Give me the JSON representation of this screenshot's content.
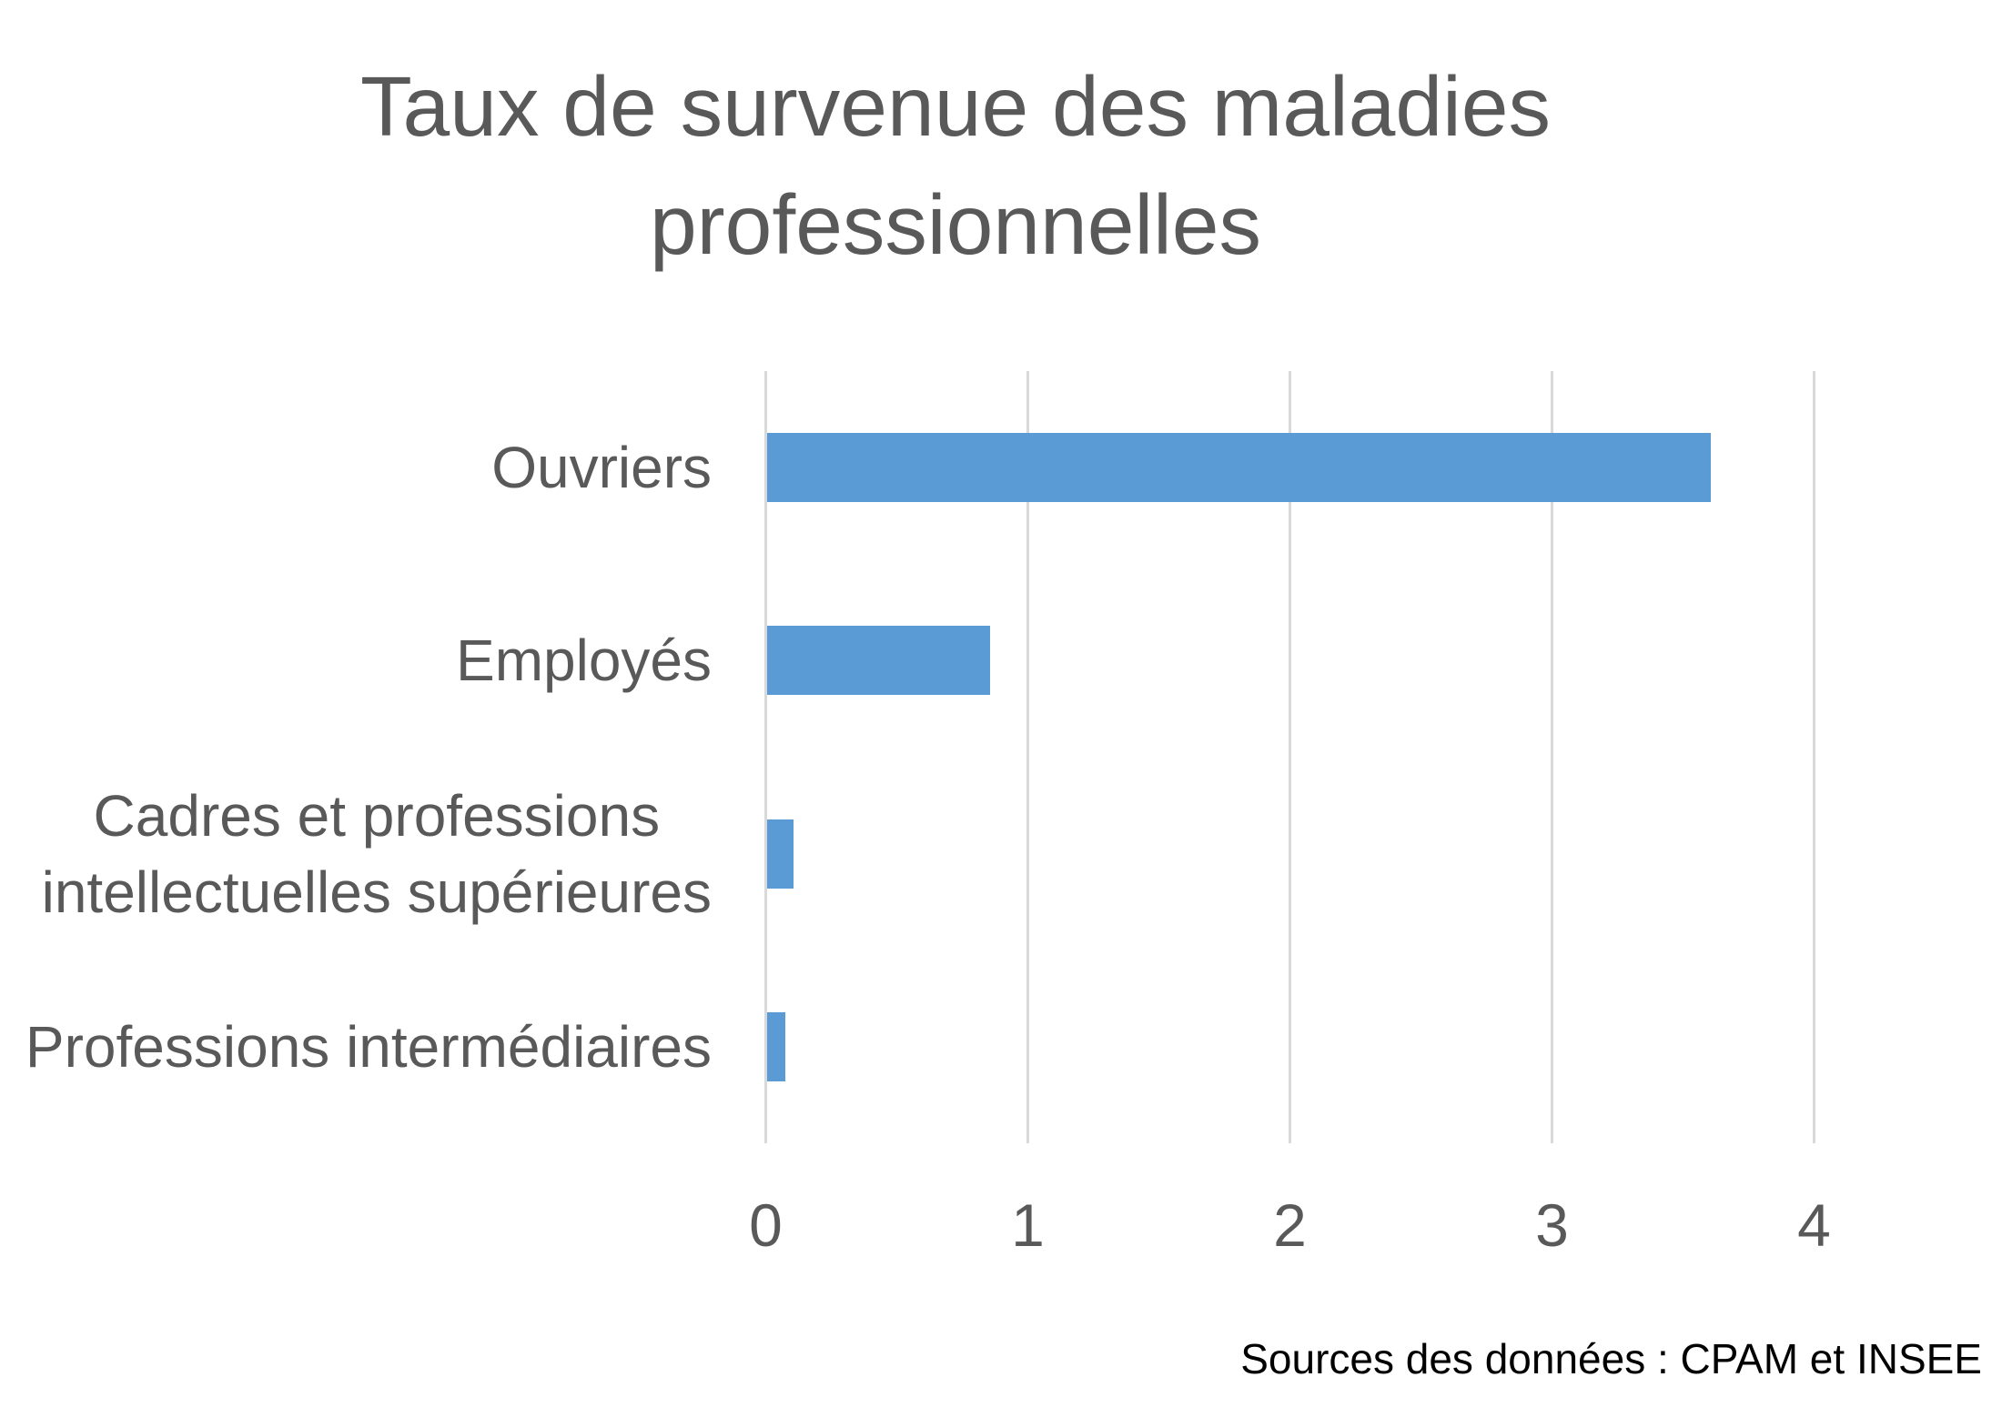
{
  "title": {
    "lines": [
      "Taux de survenue des maladies",
      "professionnelles"
    ]
  },
  "chart_data": {
    "type": "bar",
    "orientation": "horizontal",
    "title": "Taux de survenue des maladies professionnelles",
    "categories": [
      "Ouvriers",
      "Employés",
      "Cadres et professions intellectuelles supérieures",
      "Professions intermédiaires"
    ],
    "category_label_lines": [
      [
        "Ouvriers"
      ],
      [
        "Employés"
      ],
      [
        "Cadres et professions",
        "intellectuelles supérieures"
      ],
      [
        "Professions intermédiaires"
      ]
    ],
    "values": [
      3.6,
      0.85,
      0.1,
      0.07
    ],
    "x_ticks": [
      "0",
      "1",
      "2",
      "3",
      "4"
    ],
    "xlim": [
      0,
      4
    ],
    "xlabel": "",
    "ylabel": "",
    "grid": true,
    "legend": "none",
    "source_note": "Sources des données : CPAM et INSEE"
  },
  "colors": {
    "bar": "#5B9BD5",
    "grid": "#D9D9D9",
    "axis_text": "#595959",
    "title_text": "#595959",
    "source_text": "#000000",
    "background": "#FFFFFF"
  },
  "source": {
    "label": "Sources des données : CPAM et INSEE"
  }
}
